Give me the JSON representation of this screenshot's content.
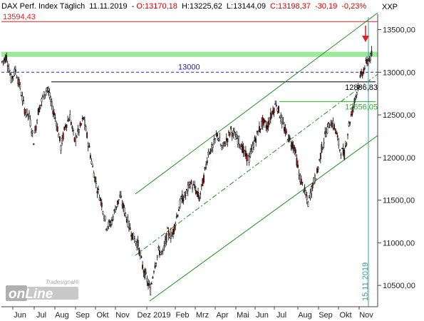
{
  "header": {
    "symbol": "DAX Perf. Index Täglich",
    "date": "11.11.2019",
    "open": "O:13170,18",
    "high": "H:13225,62",
    "low": "L:13144,09",
    "close": "C:13198,37",
    "change": "-30,19",
    "change_pct": "-0,23%",
    "exchange": "XXP"
  },
  "chart_data": {
    "type": "candlestick",
    "ylim": [
      10250,
      13680
    ],
    "y_ticks": [
      10500,
      11000,
      11500,
      12000,
      12500,
      13000,
      13500
    ],
    "y_tick_labels": [
      "10500,00",
      "11000,00",
      "11500,00",
      "12000,00",
      "12500,00",
      "13000,00",
      "13500,00"
    ],
    "month_labels": [
      "Jun",
      "Jul",
      "Aug",
      "Sep",
      "Okt",
      "Nov",
      "Dez 2019",
      "Feb",
      "Mrz",
      "Apr",
      "Mai",
      "Jun",
      "Jul",
      "Aug",
      "Sep",
      "Okt",
      "Nov"
    ],
    "levels": [
      {
        "value": 13594.43,
        "label": "13594,43",
        "color": "#e02020",
        "style": "solid"
      },
      {
        "value": 13000,
        "label": "13000",
        "color": "#2020c0",
        "style": "dashed"
      },
      {
        "value": 12886.83,
        "label": "12886,83",
        "color": "#000000",
        "style": "solid"
      },
      {
        "value": 12656.05,
        "label": "12656,05",
        "color": "#28b028",
        "style": "solid"
      }
    ],
    "resistance_zone": {
      "from": 13180,
      "to": 13240,
      "color": "#9ee89e"
    },
    "channel_color": "#1e8c1e",
    "vline_label": "15.11.2019",
    "vline_color": "#35a0a0",
    "watermark_small": "Tradesignal®",
    "watermark_big": "onLine",
    "anchors": [
      [
        0,
        13120
      ],
      [
        4,
        13180
      ],
      [
        8,
        12920
      ],
      [
        12,
        13020
      ],
      [
        16,
        12820
      ],
      [
        20,
        12560
      ],
      [
        24,
        12480
      ],
      [
        28,
        12200
      ],
      [
        32,
        12540
      ],
      [
        36,
        12700
      ],
      [
        40,
        12820
      ],
      [
        44,
        12600
      ],
      [
        48,
        12420
      ],
      [
        52,
        12120
      ],
      [
        56,
        12380
      ],
      [
        60,
        12480
      ],
      [
        64,
        12200
      ],
      [
        68,
        12320
      ],
      [
        72,
        12460
      ],
      [
        76,
        12180
      ],
      [
        80,
        11880
      ],
      [
        84,
        11640
      ],
      [
        88,
        11460
      ],
      [
        92,
        11200
      ],
      [
        96,
        11220
      ],
      [
        100,
        11400
      ],
      [
        104,
        11540
      ],
      [
        108,
        11380
      ],
      [
        112,
        11200
      ],
      [
        116,
        11060
      ],
      [
        120,
        10980
      ],
      [
        124,
        10720
      ],
      [
        128,
        10560
      ],
      [
        131,
        10440
      ],
      [
        134,
        10700
      ],
      [
        138,
        10900
      ],
      [
        142,
        10880
      ],
      [
        146,
        11120
      ],
      [
        150,
        11080
      ],
      [
        154,
        11300
      ],
      [
        158,
        11500
      ],
      [
        162,
        11560
      ],
      [
        166,
        11700
      ],
      [
        170,
        11640
      ],
      [
        174,
        11520
      ],
      [
        178,
        11760
      ],
      [
        182,
        12060
      ],
      [
        186,
        12120
      ],
      [
        190,
        12280
      ],
      [
        194,
        12100
      ],
      [
        198,
        12200
      ],
      [
        202,
        12320
      ],
      [
        206,
        12240
      ],
      [
        210,
        12180
      ],
      [
        214,
        12040
      ],
      [
        218,
        11980
      ],
      [
        222,
        12160
      ],
      [
        226,
        12300
      ],
      [
        230,
        12420
      ],
      [
        234,
        12360
      ],
      [
        238,
        12520
      ],
      [
        242,
        12640
      ],
      [
        246,
        12460
      ],
      [
        250,
        12300
      ],
      [
        254,
        12200
      ],
      [
        258,
        12120
      ],
      [
        262,
        11800
      ],
      [
        266,
        11640
      ],
      [
        270,
        11460
      ],
      [
        274,
        11680
      ],
      [
        278,
        11820
      ],
      [
        282,
        12100
      ],
      [
        286,
        12300
      ],
      [
        290,
        12420
      ],
      [
        294,
        12340
      ],
      [
        298,
        12100
      ],
      [
        302,
        12040
      ],
      [
        306,
        12380
      ],
      [
        310,
        12600
      ],
      [
        314,
        12840
      ],
      [
        318,
        13000
      ],
      [
        322,
        13120
      ],
      [
        326,
        13198
      ]
    ]
  }
}
